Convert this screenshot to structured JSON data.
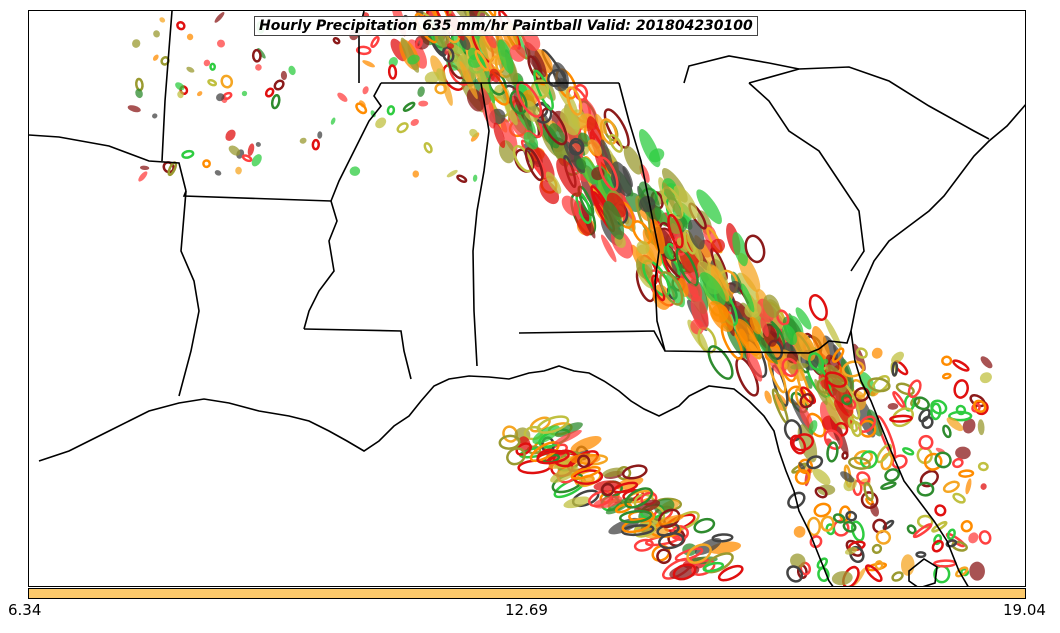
{
  "map": {
    "title": "Hourly Precipitation 635 mm/hr Paintball Valid: 201804230100",
    "colorbar": {
      "min_label": "6.34",
      "mid_label": "12.69",
      "max_label": "19.04",
      "color": "#fcc96b"
    },
    "member_colors": [
      "#ff4040",
      "#e01010",
      "#8b1a1a",
      "#ff8c00",
      "#f5a623",
      "#9a9a30",
      "#2ecc40",
      "#2e8b2e",
      "#444444",
      "#c0c040"
    ]
  }
}
